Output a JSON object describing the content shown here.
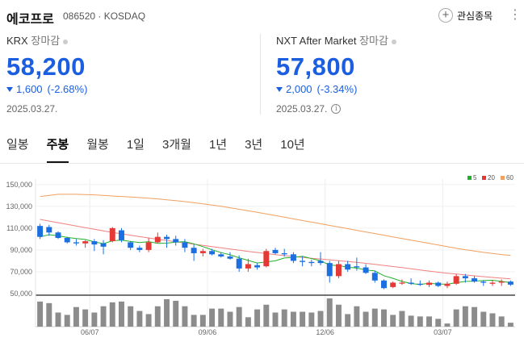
{
  "header": {
    "name": "에코프로",
    "code_market": "086520 · KOSDAQ",
    "watch_label": "관심종목",
    "more_glyph": "⋮",
    "plus_glyph": "+"
  },
  "krx": {
    "label": "KRX",
    "session": "장마감",
    "price": "58,200",
    "change": "1,600",
    "change_pct": "(-2.68%)",
    "date": "2025.03.27."
  },
  "nxt": {
    "label": "NXT After Market",
    "session": "장마감",
    "price": "57,800",
    "change": "2,000",
    "change_pct": "(-3.34%)",
    "date": "2025.03.27.",
    "info_glyph": "i"
  },
  "tabs": [
    {
      "label": "일봉",
      "active": false
    },
    {
      "label": "주봉",
      "active": true
    },
    {
      "label": "월봉",
      "active": false
    },
    {
      "label": "1일",
      "active": false
    },
    {
      "label": "3개월",
      "active": false
    },
    {
      "label": "1년",
      "active": false
    },
    {
      "label": "3년",
      "active": false
    },
    {
      "label": "10년",
      "active": false
    }
  ],
  "chart_data": {
    "type": "candlestick",
    "interval": "weekly",
    "ylim": [
      50000,
      155000
    ],
    "yticks": [
      50000,
      70000,
      90000,
      110000,
      130000,
      150000
    ],
    "ytick_labels": [
      "50,000",
      "70,000",
      "90,000",
      "110,000",
      "130,000",
      "150,000"
    ],
    "xtick_labels": [
      {
        "label": "06/07",
        "index": 6
      },
      {
        "label": "09/06",
        "index": 19
      },
      {
        "label": "12/06",
        "index": 32
      },
      {
        "label": "03/07",
        "index": 45
      }
    ],
    "legend": [
      {
        "name": "5",
        "color": "#22b02a"
      },
      {
        "name": "20",
        "color": "#e53935"
      },
      {
        "name": "60",
        "color": "#f0a060"
      }
    ],
    "up_color": "#e53935",
    "down_color": "#1b6fe0",
    "volume_color": "#8c8c8c",
    "candles": [
      [
        112000,
        114000,
        100000,
        102000
      ],
      [
        111000,
        113000,
        103000,
        106000
      ],
      [
        106000,
        107000,
        100000,
        101000
      ],
      [
        101000,
        102000,
        96000,
        97000
      ],
      [
        97000,
        100000,
        94000,
        96000
      ],
      [
        96000,
        99000,
        92000,
        98000
      ],
      [
        98000,
        100000,
        89000,
        95000
      ],
      [
        96000,
        99000,
        86000,
        93000
      ],
      [
        98000,
        111000,
        97000,
        110000
      ],
      [
        108000,
        110000,
        97000,
        99000
      ],
      [
        97000,
        98000,
        90000,
        92000
      ],
      [
        92000,
        94000,
        88000,
        90000
      ],
      [
        90000,
        101000,
        88000,
        97000
      ],
      [
        97000,
        106000,
        96000,
        102000
      ],
      [
        102000,
        104000,
        92000,
        100000
      ],
      [
        100000,
        103000,
        94000,
        97000
      ],
      [
        97000,
        100000,
        88000,
        92000
      ],
      [
        92000,
        95000,
        80000,
        87000
      ],
      [
        87000,
        91000,
        84000,
        89000
      ],
      [
        89000,
        91000,
        85000,
        86000
      ],
      [
        86000,
        88000,
        83000,
        84000
      ],
      [
        84000,
        88000,
        81000,
        82000
      ],
      [
        82000,
        85000,
        70000,
        73000
      ],
      [
        73000,
        82000,
        70000,
        77000
      ],
      [
        76000,
        78000,
        72000,
        74000
      ],
      [
        75000,
        91000,
        74000,
        89000
      ],
      [
        90000,
        92000,
        86000,
        87000
      ],
      [
        87000,
        91000,
        84000,
        86000
      ],
      [
        86000,
        88000,
        78000,
        80000
      ],
      [
        80000,
        84000,
        75000,
        79000
      ],
      [
        79000,
        81000,
        75000,
        78000
      ],
      [
        80000,
        88000,
        76000,
        78000
      ],
      [
        78000,
        80000,
        60000,
        66000
      ],
      [
        66000,
        80000,
        64000,
        77000
      ],
      [
        77000,
        80000,
        70000,
        72000
      ],
      [
        75000,
        83000,
        71000,
        74000
      ],
      [
        74000,
        77000,
        68000,
        69000
      ],
      [
        69000,
        71000,
        60000,
        62000
      ],
      [
        62000,
        63000,
        54000,
        55000
      ],
      [
        56000,
        61000,
        55000,
        60000
      ],
      [
        60000,
        63000,
        58000,
        60000
      ],
      [
        60000,
        64000,
        58000,
        59000
      ],
      [
        59000,
        62000,
        57000,
        58000
      ],
      [
        58000,
        62000,
        56000,
        60000
      ],
      [
        60000,
        61000,
        56000,
        57000
      ],
      [
        57000,
        61000,
        55000,
        59000
      ],
      [
        59000,
        68000,
        58000,
        66000
      ],
      [
        66000,
        68000,
        60000,
        64000
      ],
      [
        64000,
        66000,
        60000,
        61000
      ],
      [
        61000,
        62000,
        57000,
        60000
      ],
      [
        59000,
        62000,
        57000,
        60000
      ],
      [
        60000,
        63000,
        57000,
        61000
      ],
      [
        61000,
        62000,
        57000,
        58200
      ]
    ],
    "ma20": [
      118000,
      116500,
      115000,
      113500,
      112000,
      110500,
      109000,
      107500,
      106000,
      104800,
      103500,
      102200,
      101000,
      99800,
      98600,
      97500,
      96400,
      95300,
      94200,
      93100,
      92000,
      90900,
      89800,
      88700,
      87700,
      86700,
      85700,
      84800,
      84000,
      83200,
      82400,
      81700,
      81000,
      80200,
      79400,
      78600,
      77700,
      76800,
      75800,
      74800,
      73800,
      72700,
      71600,
      70600,
      69600,
      68700,
      67900,
      67100,
      66300,
      65500,
      64800,
      64100,
      63500
    ],
    "ma60": [
      139000,
      140000,
      141000,
      141000,
      141000,
      140800,
      140500,
      140000,
      139500,
      139000,
      138500,
      138000,
      137400,
      136800,
      136000,
      135200,
      134300,
      133300,
      132300,
      131200,
      130000,
      128700,
      127300,
      125900,
      124500,
      123000,
      121500,
      120000,
      118500,
      117000,
      115500,
      114000,
      112500,
      111000,
      109500,
      108000,
      106500,
      105000,
      103500,
      102000,
      100500,
      99000,
      97500,
      96000,
      94500,
      93000,
      91500,
      90200,
      89000,
      87800,
      86800,
      85800,
      85000
    ],
    "volume": [
      32,
      30,
      18,
      15,
      25,
      22,
      18,
      26,
      31,
      32,
      26,
      20,
      16,
      26,
      35,
      33,
      26,
      15,
      15,
      23,
      23,
      19,
      25,
      12,
      22,
      28,
      18,
      22,
      19,
      19,
      18,
      20,
      36,
      28,
      16,
      26,
      19,
      23,
      22,
      15,
      20,
      14,
      13,
      13,
      10,
      4,
      22,
      26,
      25,
      19,
      17,
      13,
      5
    ]
  }
}
